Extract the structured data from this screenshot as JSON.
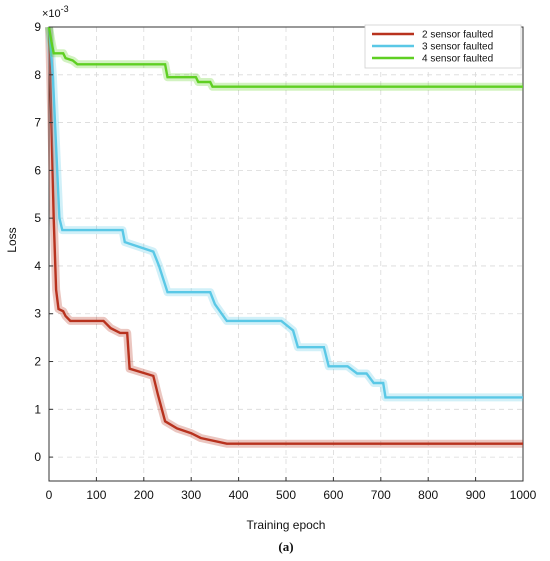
{
  "chart_data": {
    "type": "line",
    "xlabel": "Training epoch",
    "ylabel": "Loss",
    "exponent_label": "×10",
    "exponent_power": "-3",
    "caption": "(a)",
    "xlim": [
      0,
      1000
    ],
    "ylim": [
      -0.5,
      9.0
    ],
    "xticks": [
      0,
      100,
      200,
      300,
      400,
      500,
      600,
      700,
      800,
      900,
      1000
    ],
    "yticks": [
      0,
      1,
      2,
      3,
      4,
      5,
      6,
      7,
      8,
      9
    ],
    "grid": true,
    "legend_position": "top-right",
    "series": [
      {
        "name": "2 sensor faulted",
        "color": "#b8321e",
        "points": [
          [
            0,
            9.0
          ],
          [
            5,
            7.0
          ],
          [
            10,
            5.0
          ],
          [
            15,
            3.5
          ],
          [
            20,
            3.1
          ],
          [
            30,
            3.05
          ],
          [
            35,
            2.95
          ],
          [
            45,
            2.85
          ],
          [
            115,
            2.85
          ],
          [
            130,
            2.7
          ],
          [
            150,
            2.6
          ],
          [
            165,
            2.6
          ],
          [
            170,
            1.85
          ],
          [
            220,
            1.7
          ],
          [
            230,
            1.3
          ],
          [
            245,
            0.75
          ],
          [
            270,
            0.6
          ],
          [
            300,
            0.5
          ],
          [
            320,
            0.4
          ],
          [
            375,
            0.28
          ],
          [
            1000,
            0.28
          ]
        ]
      },
      {
        "name": "3 sensor faulted",
        "color": "#5ac8e6",
        "points": [
          [
            0,
            9.0
          ],
          [
            8,
            8.0
          ],
          [
            15,
            6.5
          ],
          [
            22,
            5.0
          ],
          [
            28,
            4.75
          ],
          [
            155,
            4.75
          ],
          [
            160,
            4.5
          ],
          [
            220,
            4.3
          ],
          [
            232,
            4.0
          ],
          [
            250,
            3.45
          ],
          [
            340,
            3.45
          ],
          [
            350,
            3.2
          ],
          [
            375,
            2.85
          ],
          [
            490,
            2.85
          ],
          [
            515,
            2.65
          ],
          [
            525,
            2.3
          ],
          [
            580,
            2.3
          ],
          [
            590,
            1.9
          ],
          [
            630,
            1.9
          ],
          [
            650,
            1.75
          ],
          [
            670,
            1.75
          ],
          [
            685,
            1.55
          ],
          [
            705,
            1.55
          ],
          [
            710,
            1.25
          ],
          [
            1000,
            1.25
          ]
        ]
      },
      {
        "name": "4 sensor faulted",
        "color": "#5fcf22",
        "points": [
          [
            0,
            9.0
          ],
          [
            5,
            8.7
          ],
          [
            10,
            8.45
          ],
          [
            30,
            8.45
          ],
          [
            35,
            8.35
          ],
          [
            50,
            8.3
          ],
          [
            60,
            8.22
          ],
          [
            245,
            8.22
          ],
          [
            250,
            7.95
          ],
          [
            310,
            7.95
          ],
          [
            315,
            7.85
          ],
          [
            340,
            7.85
          ],
          [
            345,
            7.75
          ],
          [
            1000,
            7.75
          ]
        ]
      }
    ]
  }
}
